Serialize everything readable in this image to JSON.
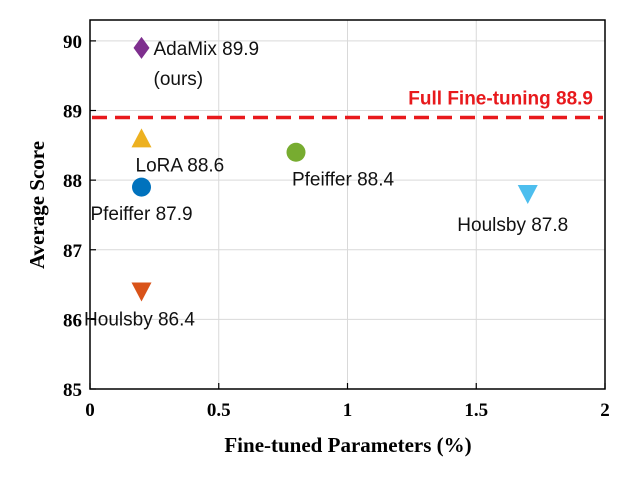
{
  "chart_data": {
    "type": "scatter",
    "xlabel": "Fine-tuned Parameters (%)",
    "ylabel": "Average Score",
    "xlim": [
      0,
      2
    ],
    "ylim": [
      85,
      90.5
    ],
    "xticks": [
      "0",
      "0.5",
      "1",
      "1.5",
      "2"
    ],
    "yticks": [
      "85",
      "86",
      "87",
      "88",
      "89",
      "90"
    ],
    "grid": true,
    "reference_line": {
      "label": "Full Fine-tuning 88.9",
      "y": 88.9,
      "color": "#e8191c"
    },
    "points": [
      {
        "label_lines": [
          "AdaMix 89.9",
          "(ours)"
        ],
        "x": 0.2,
        "y": 89.9,
        "marker": "diamond",
        "color": "#7e2f8e"
      },
      {
        "label_lines": [
          "LoRA 88.6"
        ],
        "x": 0.2,
        "y": 88.6,
        "marker": "triangle-up",
        "color": "#edb120"
      },
      {
        "label_lines": [
          "Pfeiffer 87.9"
        ],
        "x": 0.2,
        "y": 87.9,
        "marker": "circle",
        "color": "#0072bd"
      },
      {
        "label_lines": [
          "Houlsby 86.4"
        ],
        "x": 0.2,
        "y": 86.4,
        "marker": "triangle-down",
        "color": "#d95319"
      },
      {
        "label_lines": [
          "Pfeiffer 88.4"
        ],
        "x": 0.8,
        "y": 88.4,
        "marker": "circle",
        "color": "#77ac30"
      },
      {
        "label_lines": [
          "Houlsby 87.8"
        ],
        "x": 1.7,
        "y": 87.8,
        "marker": "triangle-down",
        "color": "#4dbeee"
      }
    ]
  }
}
